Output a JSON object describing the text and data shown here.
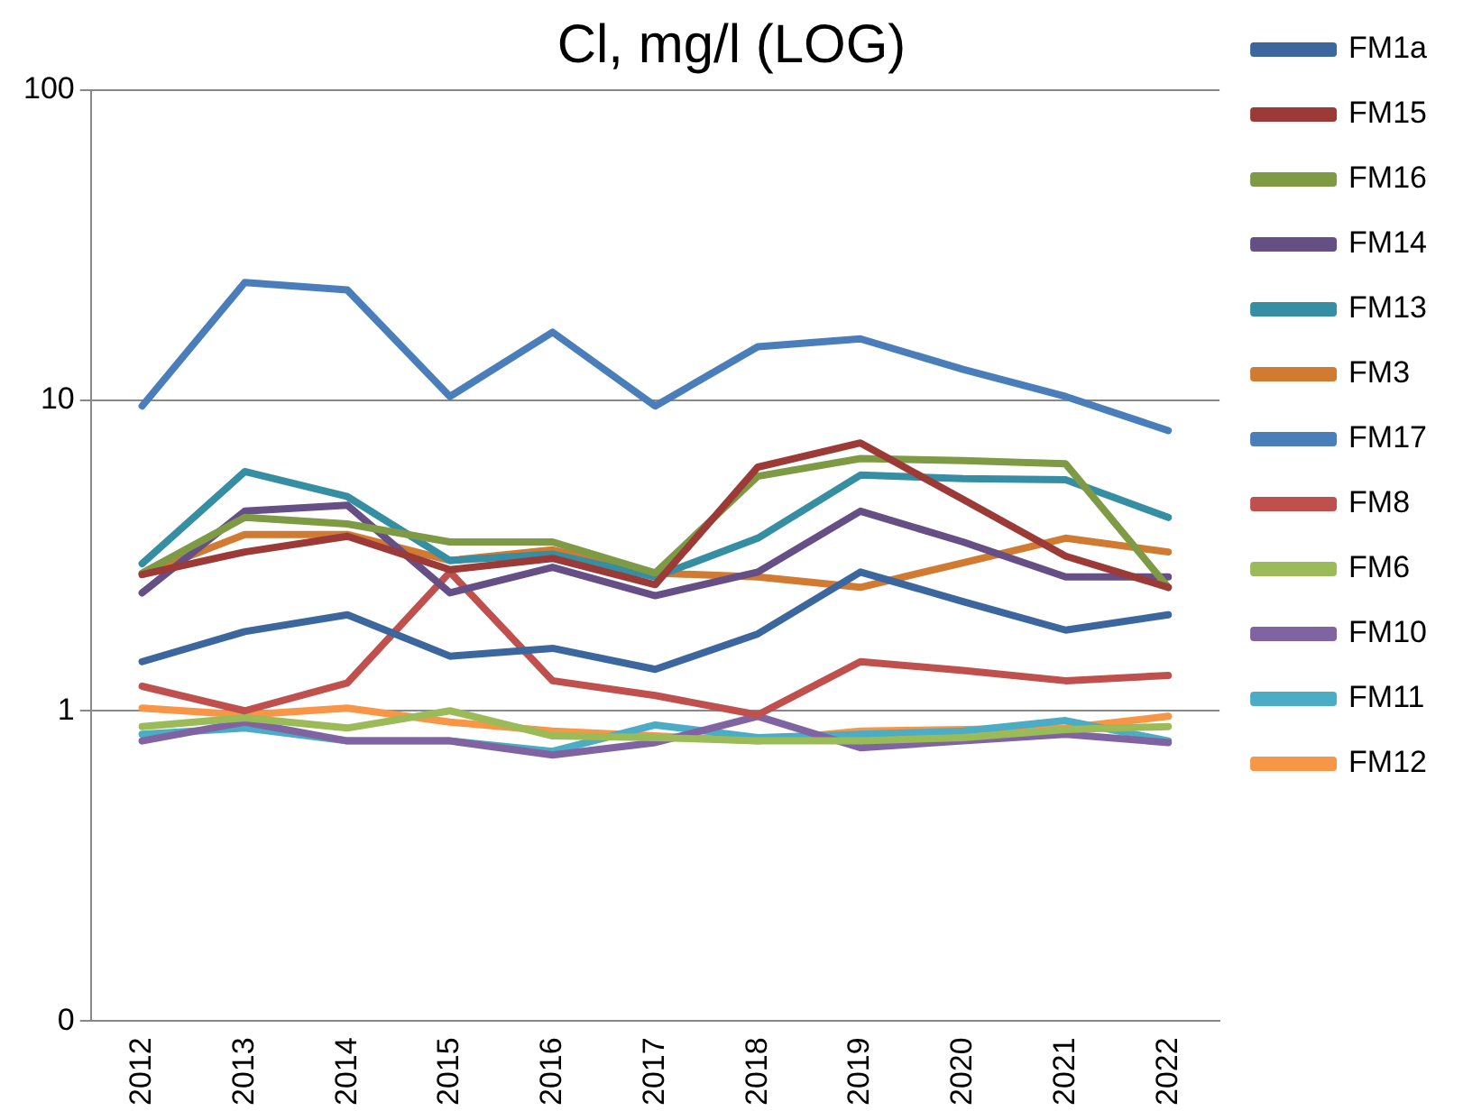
{
  "chart_data": {
    "type": "line",
    "title": "Cl, mg/l (LOG)",
    "categories": [
      "2012",
      "2013",
      "2014",
      "2015",
      "2016",
      "2017",
      "2018",
      "2019",
      "2020",
      "2021",
      "2022"
    ],
    "series": [
      {
        "name": "FM1a",
        "color": "#3c679e",
        "values": [
          1.44,
          1.8,
          2.04,
          1.5,
          1.59,
          1.36,
          1.77,
          2.8,
          2.25,
          1.82,
          2.04
        ]
      },
      {
        "name": "FM15",
        "color": "#9c3a38",
        "values": [
          2.75,
          3.25,
          3.65,
          2.85,
          3.1,
          2.55,
          6.1,
          7.3,
          4.8,
          3.15,
          2.5
        ]
      },
      {
        "name": "FM16",
        "color": "#7e9a45",
        "values": [
          2.78,
          4.2,
          4.0,
          3.5,
          3.5,
          2.78,
          5.7,
          6.5,
          6.4,
          6.25,
          2.5
        ]
      },
      {
        "name": "FM14",
        "color": "#664f85",
        "values": [
          2.4,
          4.4,
          4.6,
          2.4,
          2.9,
          2.35,
          2.8,
          4.4,
          3.5,
          2.7,
          2.7
        ]
      },
      {
        "name": "FM13",
        "color": "#368ea3",
        "values": [
          2.98,
          5.9,
          4.9,
          3.05,
          3.2,
          2.7,
          3.6,
          5.75,
          5.6,
          5.55,
          4.2
        ]
      },
      {
        "name": "FM3",
        "color": "#d07a32",
        "values": [
          2.75,
          3.7,
          3.7,
          3.05,
          3.3,
          2.78,
          2.7,
          2.5,
          3.0,
          3.6,
          3.25
        ]
      },
      {
        "name": "FM17",
        "color": "#4a7ebb",
        "values": [
          9.6,
          24,
          22.7,
          10.3,
          16.6,
          9.6,
          14.9,
          15.8,
          12.6,
          10.3,
          8.0
        ]
      },
      {
        "name": "FM8",
        "color": "#c0504d",
        "values": [
          1.2,
          1.0,
          1.23,
          2.8,
          1.25,
          1.12,
          0.97,
          1.44,
          1.35,
          1.25,
          1.3
        ]
      },
      {
        "name": "FM6",
        "color": "#9bbb59",
        "values": [
          0.89,
          0.95,
          0.88,
          1.0,
          0.83,
          0.82,
          0.8,
          0.8,
          0.82,
          0.87,
          0.89
        ]
      },
      {
        "name": "FM10",
        "color": "#8064a2",
        "values": [
          0.8,
          0.92,
          0.8,
          0.8,
          0.72,
          0.79,
          0.96,
          0.76,
          0.8,
          0.84,
          0.79
        ]
      },
      {
        "name": "FM11",
        "color": "#4bacc6",
        "values": [
          0.84,
          0.88,
          0.8,
          0.8,
          0.74,
          0.9,
          0.82,
          0.84,
          0.86,
          0.93,
          0.8
        ]
      },
      {
        "name": "FM12",
        "color": "#f79646",
        "values": [
          1.02,
          0.97,
          1.02,
          0.92,
          0.86,
          0.83,
          0.8,
          0.86,
          0.87,
          0.88,
          0.96
        ]
      }
    ],
    "log": "y",
    "ylim": [
      0.1,
      100
    ],
    "yticks": [
      {
        "value": 0.1,
        "label": "0"
      },
      1,
      10,
      100
    ],
    "grid": "y",
    "legend": "right",
    "marker": "none",
    "line_style": "solid"
  }
}
